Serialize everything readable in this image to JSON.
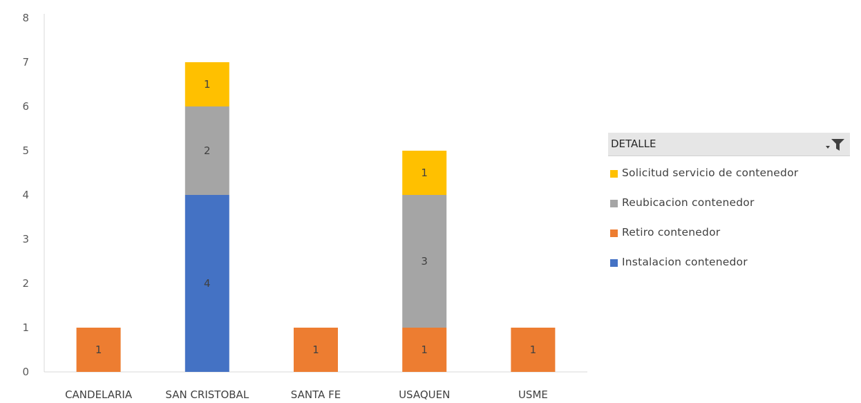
{
  "chart_data": {
    "type": "bar",
    "stacked": true,
    "categories": [
      "CANDELARIA",
      "SAN CRISTOBAL",
      "SANTA FE",
      "USAQUEN",
      "USME"
    ],
    "series": [
      {
        "name": "Instalacion contenedor",
        "color": "#4472C4",
        "values": [
          0,
          4,
          0,
          0,
          0
        ]
      },
      {
        "name": "Retiro contenedor",
        "color": "#ED7D31",
        "values": [
          1,
          0,
          1,
          1,
          1
        ]
      },
      {
        "name": "Reubicacion contenedor",
        "color": "#A5A5A5",
        "values": [
          0,
          2,
          0,
          3,
          0
        ]
      },
      {
        "name": "Solicitud servicio de contenedor",
        "color": "#FFC000",
        "values": [
          0,
          1,
          0,
          1,
          0
        ]
      }
    ],
    "ylim": [
      0,
      8
    ],
    "yticks": [
      "0",
      "1",
      "2",
      "3",
      "4",
      "5",
      "6",
      "7",
      "8"
    ],
    "gridlines": false,
    "legend_position": "right",
    "legend_title": "DETALLE",
    "legend_order": [
      "Solicitud servicio de contenedor",
      "Reubicacion contenedor",
      "Retiro contenedor",
      "Instalacion contenedor"
    ]
  },
  "legend": {
    "title": "DETALLE",
    "filter_icon": "filter-dropdown-icon",
    "items": [
      {
        "label": "Solicitud servicio de contenedor",
        "color": "#FFC000"
      },
      {
        "label": "Reubicacion contenedor",
        "color": "#A5A5A5"
      },
      {
        "label": "Retiro contenedor",
        "color": "#ED7D31"
      },
      {
        "label": "Instalacion contenedor",
        "color": "#4472C4"
      }
    ]
  }
}
